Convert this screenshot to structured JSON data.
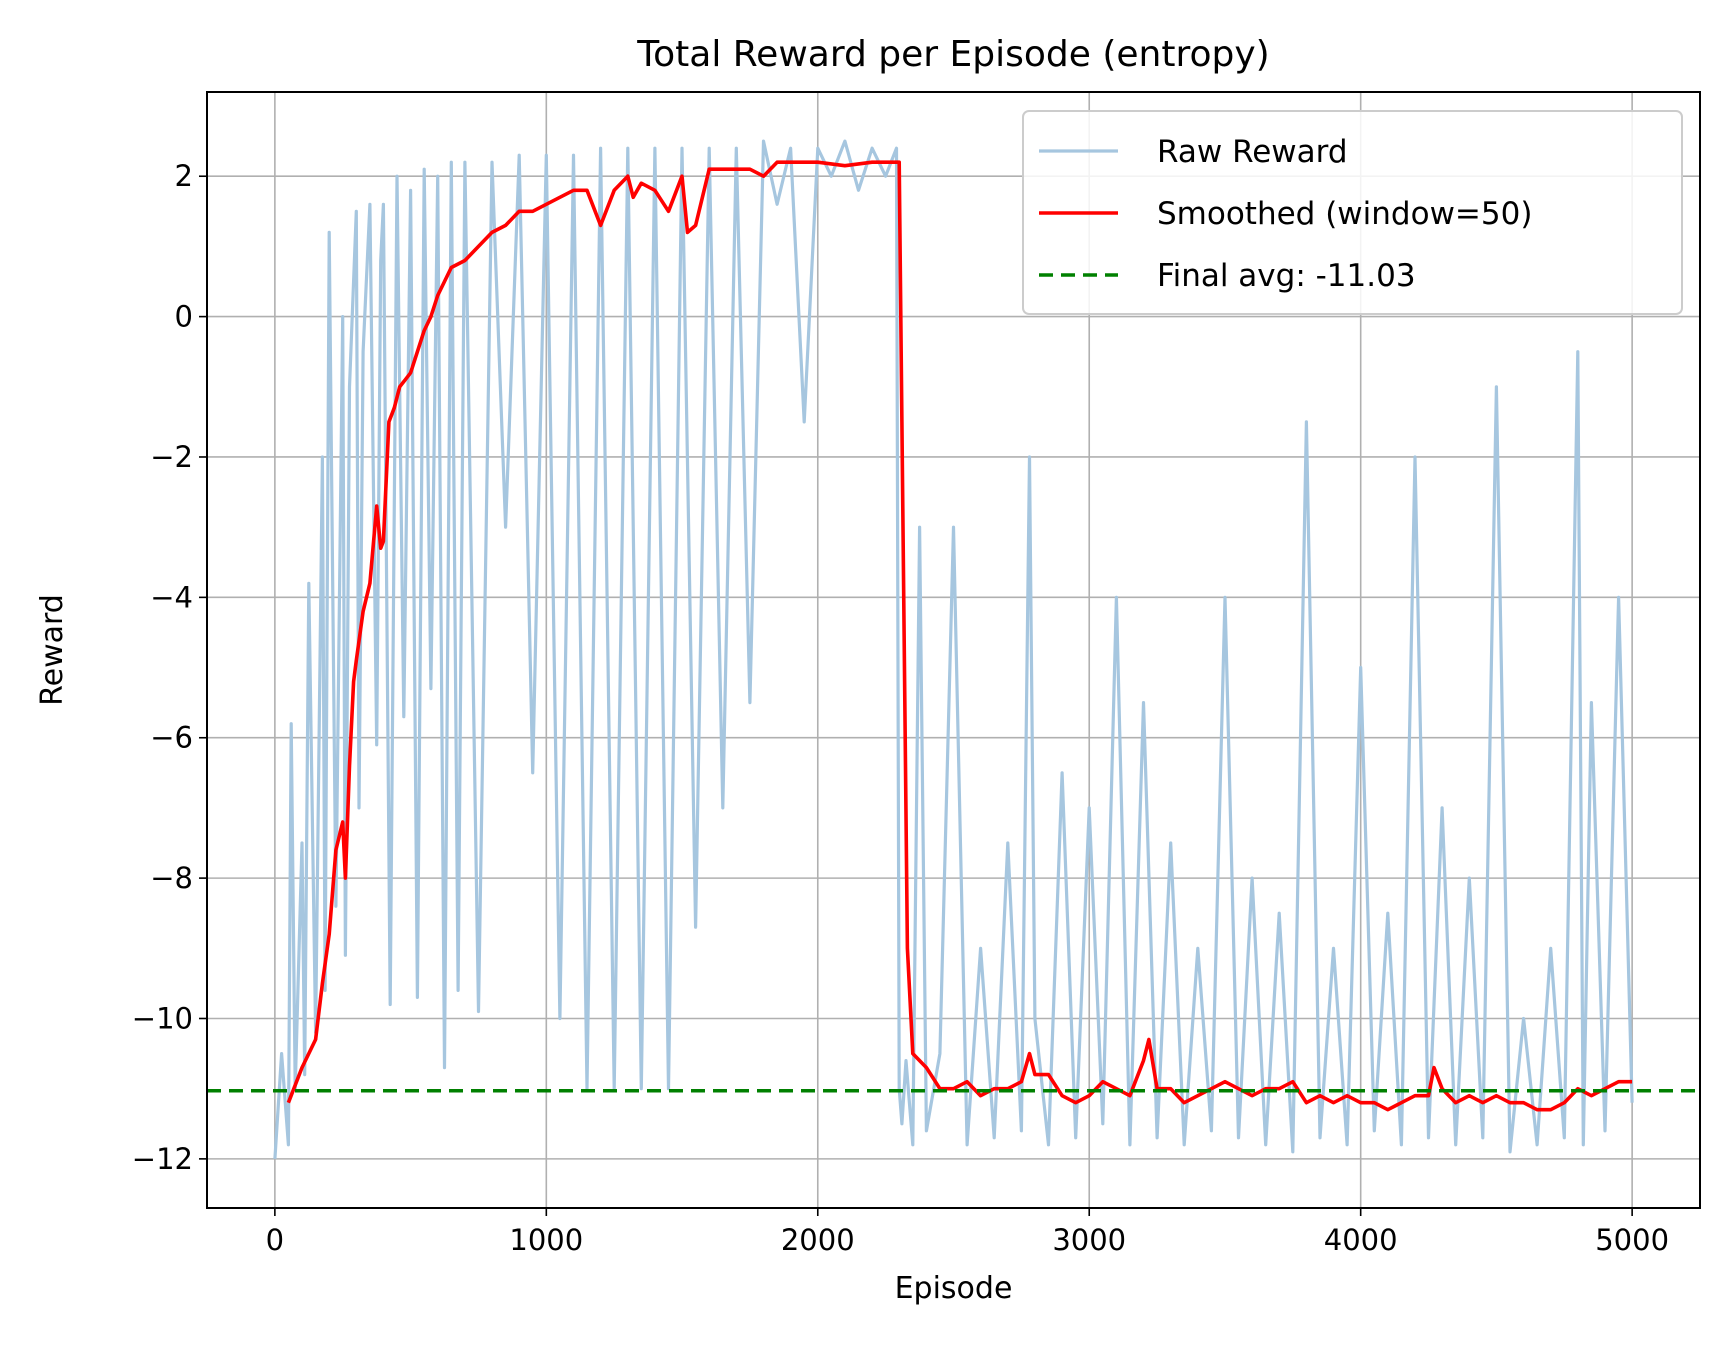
{
  "chart_data": {
    "type": "line",
    "title": "Total Reward per Episode (entropy)",
    "xlabel": "Episode",
    "ylabel": "Reward",
    "xlim": [
      -250,
      5250
    ],
    "ylim": [
      -12.7,
      3.2
    ],
    "xticks": [
      0,
      1000,
      2000,
      3000,
      4000,
      5000
    ],
    "xtick_labels": [
      "0",
      "1000",
      "2000",
      "3000",
      "4000",
      "5000"
    ],
    "yticks": [
      -12,
      -10,
      -8,
      -6,
      -4,
      -2,
      0,
      2
    ],
    "ytick_labels": [
      "−12",
      "−10",
      "−8",
      "−6",
      "−4",
      "−2",
      "0",
      "2"
    ],
    "grid": true,
    "legend_position": "top-right",
    "series": [
      {
        "name": "Raw Reward",
        "color": "#a6c6df",
        "style": "solid",
        "x": [
          0,
          25,
          50,
          60,
          75,
          100,
          110,
          125,
          150,
          175,
          185,
          200,
          225,
          250,
          260,
          275,
          300,
          310,
          325,
          350,
          375,
          390,
          400,
          425,
          450,
          475,
          500,
          525,
          550,
          575,
          600,
          625,
          650,
          675,
          700,
          750,
          800,
          850,
          900,
          950,
          1000,
          1050,
          1100,
          1150,
          1200,
          1250,
          1300,
          1350,
          1400,
          1450,
          1500,
          1550,
          1600,
          1650,
          1700,
          1750,
          1800,
          1850,
          1900,
          1950,
          2000,
          2050,
          2100,
          2150,
          2200,
          2250,
          2290,
          2300,
          2310,
          2325,
          2350,
          2375,
          2400,
          2450,
          2500,
          2550,
          2600,
          2650,
          2700,
          2750,
          2780,
          2800,
          2850,
          2900,
          2950,
          3000,
          3050,
          3100,
          3150,
          3200,
          3250,
          3300,
          3350,
          3400,
          3450,
          3500,
          3550,
          3600,
          3650,
          3700,
          3750,
          3800,
          3850,
          3900,
          3950,
          4000,
          4050,
          4100,
          4150,
          4200,
          4250,
          4300,
          4350,
          4400,
          4450,
          4500,
          4550,
          4600,
          4650,
          4700,
          4750,
          4800,
          4820,
          4850,
          4900,
          4950,
          5000
        ],
        "values": [
          -12.0,
          -10.5,
          -11.8,
          -5.8,
          -11.0,
          -7.5,
          -10.8,
          -3.8,
          -10.2,
          -2.0,
          -9.6,
          1.2,
          -8.4,
          0.0,
          -9.1,
          -1.0,
          1.5,
          -7.0,
          -0.5,
          1.6,
          -6.1,
          0.8,
          1.6,
          -9.8,
          2.0,
          -5.7,
          1.8,
          -9.7,
          2.1,
          -5.3,
          2.0,
          -10.7,
          2.2,
          -9.6,
          2.2,
          -9.9,
          2.2,
          -3.0,
          2.3,
          -6.5,
          2.3,
          -10.0,
          2.3,
          -11.0,
          2.4,
          -11.0,
          2.4,
          -11.0,
          2.4,
          -11.0,
          2.4,
          -8.7,
          2.4,
          -7.0,
          2.4,
          -5.5,
          2.5,
          1.6,
          2.4,
          -1.5,
          2.4,
          2.0,
          2.5,
          1.8,
          2.4,
          2.0,
          2.4,
          -11.0,
          -11.5,
          -10.6,
          -11.8,
          -3.0,
          -11.6,
          -10.5,
          -3.0,
          -11.8,
          -9.0,
          -11.7,
          -7.5,
          -11.6,
          -2.0,
          -10.0,
          -11.8,
          -6.5,
          -11.7,
          -7.0,
          -11.5,
          -4.0,
          -11.8,
          -5.5,
          -11.7,
          -7.5,
          -11.8,
          -9.0,
          -11.6,
          -4.0,
          -11.7,
          -8.0,
          -11.8,
          -8.5,
          -11.9,
          -1.5,
          -11.7,
          -9.0,
          -11.8,
          -5.0,
          -11.6,
          -8.5,
          -11.8,
          -2.0,
          -11.7,
          -7.0,
          -11.8,
          -8.0,
          -11.7,
          -1.0,
          -11.9,
          -10.0,
          -11.8,
          -9.0,
          -11.7,
          -0.5,
          -11.8,
          -5.5,
          -11.6,
          -4.0,
          -11.2
        ]
      },
      {
        "name": "Smoothed (window=50)",
        "color": "#ff0000",
        "style": "solid",
        "x": [
          50,
          100,
          150,
          175,
          200,
          225,
          250,
          260,
          275,
          290,
          300,
          325,
          350,
          375,
          390,
          400,
          420,
          440,
          460,
          480,
          500,
          525,
          550,
          575,
          600,
          625,
          650,
          700,
          750,
          800,
          850,
          900,
          950,
          1000,
          1050,
          1100,
          1150,
          1200,
          1250,
          1300,
          1320,
          1350,
          1400,
          1450,
          1500,
          1520,
          1550,
          1600,
          1650,
          1700,
          1750,
          1800,
          1850,
          1900,
          2000,
          2100,
          2200,
          2300,
          2310,
          2330,
          2350,
          2400,
          2450,
          2500,
          2550,
          2600,
          2650,
          2700,
          2750,
          2780,
          2800,
          2850,
          2900,
          2950,
          3000,
          3050,
          3100,
          3150,
          3200,
          3220,
          3250,
          3300,
          3350,
          3400,
          3450,
          3500,
          3550,
          3600,
          3650,
          3700,
          3750,
          3800,
          3850,
          3900,
          3950,
          4000,
          4050,
          4100,
          4150,
          4200,
          4250,
          4270,
          4300,
          4350,
          4400,
          4450,
          4500,
          4550,
          4600,
          4650,
          4700,
          4750,
          4800,
          4850,
          4900,
          4950,
          5000
        ],
        "values": [
          -11.2,
          -10.7,
          -10.3,
          -9.5,
          -8.8,
          -7.6,
          -7.2,
          -8.0,
          -6.4,
          -5.2,
          -4.9,
          -4.2,
          -3.8,
          -2.7,
          -3.3,
          -3.2,
          -1.5,
          -1.3,
          -1.0,
          -0.9,
          -0.8,
          -0.5,
          -0.2,
          0.0,
          0.3,
          0.5,
          0.7,
          0.8,
          1.0,
          1.2,
          1.3,
          1.5,
          1.5,
          1.6,
          1.7,
          1.8,
          1.8,
          1.3,
          1.8,
          2.0,
          1.7,
          1.9,
          1.8,
          1.5,
          2.0,
          1.2,
          1.3,
          2.1,
          2.1,
          2.1,
          2.1,
          2.0,
          2.2,
          2.2,
          2.2,
          2.15,
          2.2,
          2.2,
          -1.5,
          -9.0,
          -10.5,
          -10.7,
          -11.0,
          -11.0,
          -10.9,
          -11.1,
          -11.0,
          -11.0,
          -10.9,
          -10.5,
          -10.8,
          -10.8,
          -11.1,
          -11.2,
          -11.1,
          -10.9,
          -11.0,
          -11.1,
          -10.6,
          -10.3,
          -11.0,
          -11.0,
          -11.2,
          -11.1,
          -11.0,
          -10.9,
          -11.0,
          -11.1,
          -11.0,
          -11.0,
          -10.9,
          -11.2,
          -11.1,
          -11.2,
          -11.1,
          -11.2,
          -11.2,
          -11.3,
          -11.2,
          -11.1,
          -11.1,
          -10.7,
          -11.0,
          -11.2,
          -11.1,
          -11.2,
          -11.1,
          -11.2,
          -11.2,
          -11.3,
          -11.3,
          -11.2,
          -11.0,
          -11.1,
          -11.0,
          -10.9,
          -10.9
        ]
      },
      {
        "name": "Final avg: -11.03",
        "color": "#008000",
        "style": "dashed",
        "type": "hline",
        "y": -11.03
      }
    ]
  }
}
